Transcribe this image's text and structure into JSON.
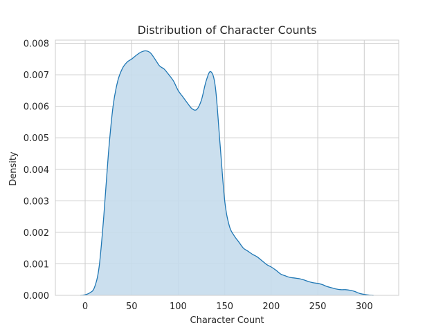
{
  "chart_data": {
    "type": "area",
    "title": "Distribution of Character Counts",
    "xlabel": "Character Count",
    "ylabel": "Density",
    "xlim": [
      -32,
      337
    ],
    "ylim": [
      0,
      0.0081
    ],
    "xticks": [
      0,
      50,
      100,
      150,
      200,
      250,
      300
    ],
    "yticks": [
      0.0,
      0.001,
      0.002,
      0.003,
      0.004,
      0.005,
      0.006,
      0.007,
      0.008
    ],
    "ytick_labels": [
      "0.000",
      "0.001",
      "0.002",
      "0.003",
      "0.004",
      "0.005",
      "0.006",
      "0.007",
      "0.008"
    ],
    "grid": true,
    "line_color": "#1f77b4",
    "fill_color": "#c5dbec",
    "x": [
      -5,
      0,
      5,
      10,
      15,
      20,
      25,
      30,
      35,
      40,
      45,
      50,
      55,
      60,
      65,
      70,
      75,
      80,
      85,
      90,
      95,
      100,
      105,
      110,
      115,
      120,
      125,
      130,
      135,
      140,
      145,
      150,
      155,
      160,
      165,
      170,
      175,
      180,
      185,
      190,
      195,
      200,
      205,
      210,
      215,
      220,
      225,
      230,
      235,
      240,
      245,
      250,
      255,
      260,
      265,
      270,
      275,
      280,
      285,
      290,
      295,
      300,
      305,
      310
    ],
    "y": [
      0.0,
      2e-05,
      8e-05,
      0.00025,
      0.0009,
      0.0025,
      0.0045,
      0.006,
      0.0068,
      0.0072,
      0.0074,
      0.0075,
      0.00762,
      0.00772,
      0.00776,
      0.0077,
      0.0075,
      0.00728,
      0.00718,
      0.007,
      0.0068,
      0.0065,
      0.0063,
      0.0061,
      0.00592,
      0.0059,
      0.0062,
      0.0068,
      0.0071,
      0.0066,
      0.0048,
      0.003,
      0.0022,
      0.0019,
      0.0017,
      0.0015,
      0.0014,
      0.0013,
      0.00122,
      0.0011,
      0.00098,
      0.0009,
      0.0008,
      0.00068,
      0.00062,
      0.00057,
      0.00055,
      0.00053,
      0.00049,
      0.00044,
      0.0004,
      0.00038,
      0.00034,
      0.00028,
      0.00024,
      0.0002,
      0.00018,
      0.00018,
      0.00016,
      0.00012,
      6e-05,
      3e-05,
      1e-05,
      0.0
    ]
  }
}
